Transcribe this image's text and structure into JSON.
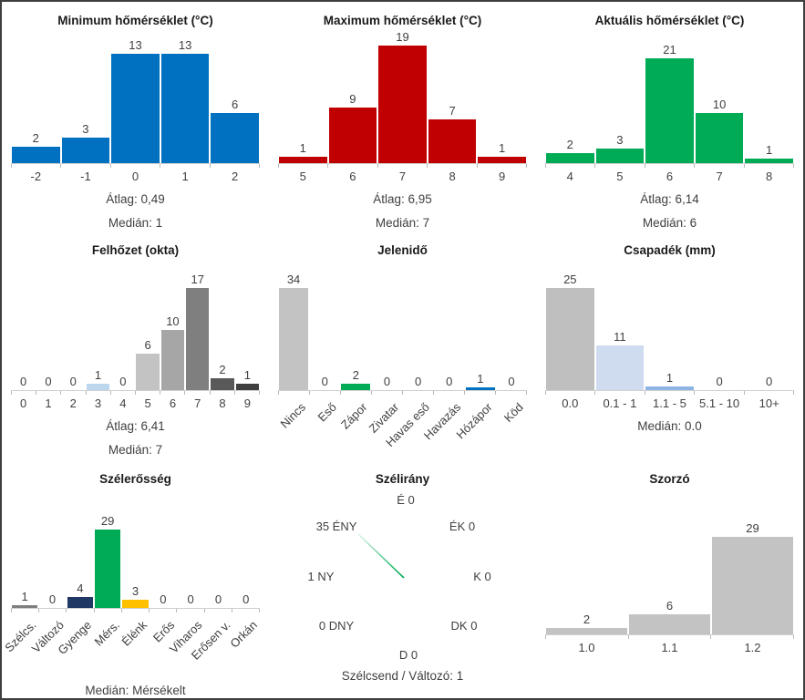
{
  "colors": {
    "border": "#3f3f3f",
    "background": "#ffffff",
    "title_text": "#1a1a1a",
    "text": "#404040",
    "axis_line": "#d0d0d0",
    "tick": "#b9b9b9",
    "blue": "#0070c0",
    "red": "#c00000",
    "green": "#00ab55",
    "navy": "#1f3864",
    "amber": "#ffc000",
    "gray": "#c3c3c3",
    "light_blue": "#bdd7ee",
    "pale_blue": "#cfdcf0",
    "mid_blue": "#8eb4e3"
  },
  "chart_data": [
    {
      "type": "bar",
      "title": "Minimum hőmérséklet (°C)",
      "categories": [
        "-2",
        "-1",
        "0",
        "1",
        "2"
      ],
      "values": [
        2,
        3,
        13,
        13,
        6
      ],
      "bar_colors": [
        "#0070c0",
        "#0070c0",
        "#0070c0",
        "#0070c0",
        "#0070c0"
      ],
      "stats": [
        "Átlag: 0,49",
        "Medián: 1"
      ]
    },
    {
      "type": "bar",
      "title": "Maximum hőmérséklet (°C)",
      "categories": [
        "5",
        "6",
        "7",
        "8",
        "9"
      ],
      "values": [
        1,
        9,
        19,
        7,
        1
      ],
      "bar_colors": [
        "#c00000",
        "#c00000",
        "#c00000",
        "#c00000",
        "#c00000"
      ],
      "stats": [
        "Átlag: 6,95",
        "Medián: 7"
      ]
    },
    {
      "type": "bar",
      "title": "Aktuális hőmérséklet (°C)",
      "categories": [
        "4",
        "5",
        "6",
        "7",
        "8"
      ],
      "values": [
        2,
        3,
        21,
        10,
        1
      ],
      "bar_colors": [
        "#00ab55",
        "#00ab55",
        "#00ab55",
        "#00ab55",
        "#00ab55"
      ],
      "stats": [
        "Átlag: 6,14",
        "Medián: 6"
      ]
    },
    {
      "type": "bar",
      "title": "Felhőzet (okta)",
      "categories": [
        "0",
        "1",
        "2",
        "3",
        "4",
        "5",
        "6",
        "7",
        "8",
        "9"
      ],
      "values": [
        0,
        0,
        0,
        1,
        0,
        6,
        10,
        17,
        2,
        1
      ],
      "bar_colors": [
        "",
        "",
        "",
        "#bdd7ee",
        "",
        "#c3c3c3",
        "#a6a6a6",
        "#7f7f7f",
        "#595959",
        "#3f3f3f"
      ],
      "stats": [
        "Átlag: 6,41",
        "Medián: 7"
      ]
    },
    {
      "type": "bar",
      "title": "Jelenidő",
      "categories": [
        "Nincs",
        "Eső",
        "Zápor",
        "Zivatar",
        "Havas eső",
        "Havazás",
        "Hózápor",
        "Köd"
      ],
      "values": [
        34,
        0,
        2,
        0,
        0,
        0,
        1,
        0
      ],
      "bar_colors": [
        "#c3c3c3",
        "",
        "#00ab55",
        "",
        "",
        "",
        "#0070c0",
        ""
      ],
      "rotated_labels": true,
      "stats": []
    },
    {
      "type": "bar",
      "title": "Csapadék (mm)",
      "categories": [
        "0.0",
        "0.1 - 1",
        "1.1 - 5",
        "5.1 - 10",
        "10+"
      ],
      "values": [
        25,
        11,
        1,
        0,
        0
      ],
      "bar_colors": [
        "#bfbfbf",
        "#cfdcf0",
        "#8eb4e3",
        "",
        ""
      ],
      "stats": [
        "Medián: 0.0"
      ]
    },
    {
      "type": "bar",
      "title": "Szélerősség",
      "categories": [
        "Szélcs.",
        "Változó",
        "Gyenge",
        "Mérs.",
        "Élénk",
        "Erős",
        "Viharos",
        "Erősen v.",
        "Orkán"
      ],
      "values": [
        1,
        0,
        4,
        29,
        3,
        0,
        0,
        0,
        0
      ],
      "bar_colors": [
        "#7f7f7f",
        "",
        "#1f3864",
        "#00ab55",
        "#ffc000",
        "",
        "",
        "",
        ""
      ],
      "rotated_labels": true,
      "stats": [
        "Medián: Mérsékelt"
      ]
    },
    {
      "type": "compass",
      "title": "Szélirány",
      "directions": [
        {
          "pos": "n",
          "direction": "É",
          "count": 0,
          "label": "É 0"
        },
        {
          "pos": "ne",
          "direction": "ÉK",
          "count": 0,
          "label": "ÉK 0"
        },
        {
          "pos": "e",
          "direction": "K",
          "count": 0,
          "label": "K 0"
        },
        {
          "pos": "se",
          "direction": "DK",
          "count": 0,
          "label": "DK 0"
        },
        {
          "pos": "s",
          "direction": "D",
          "count": 0,
          "label": "D 0"
        },
        {
          "pos": "sw",
          "direction": "DNY",
          "count": 0,
          "label": "0 DNY"
        },
        {
          "pos": "w",
          "direction": "NY",
          "count": 1,
          "label": "1 NY"
        },
        {
          "pos": "nw",
          "direction": "ÉNY",
          "count": 35,
          "label": "35 ÉNY"
        }
      ],
      "needle_direction": "ÉNY",
      "needle_color": "#00ab55",
      "footer": "Szélcsend / Változó: 1"
    },
    {
      "type": "bar",
      "title": "Szorzó",
      "categories": [
        "1.0",
        "1.1",
        "1.2"
      ],
      "values": [
        2,
        6,
        29
      ],
      "bar_colors": [
        "#c3c3c3",
        "#c3c3c3",
        "#c3c3c3"
      ],
      "stats": []
    }
  ]
}
